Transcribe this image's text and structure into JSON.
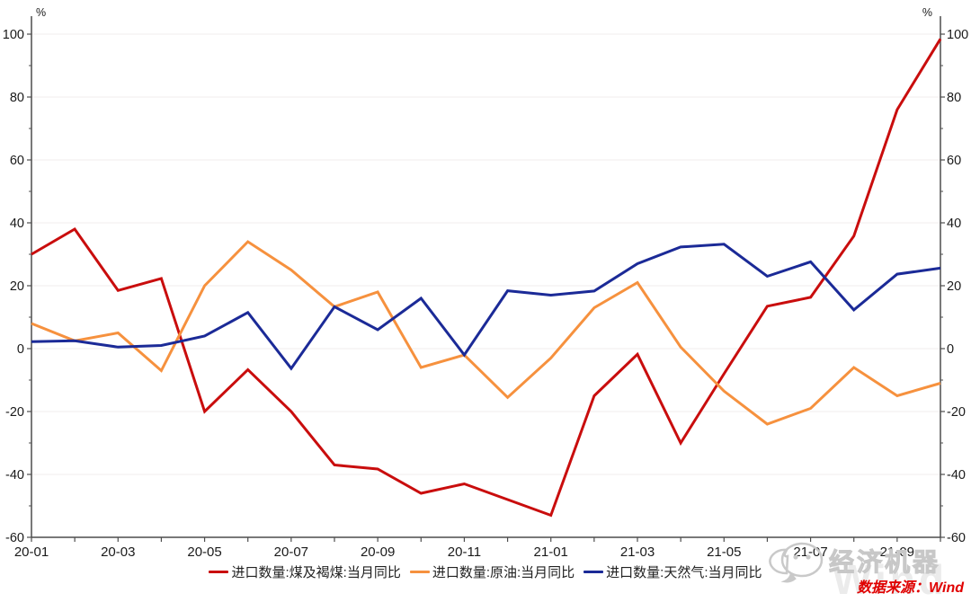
{
  "chart_data": {
    "type": "line",
    "title": "",
    "unit_label_left": "%",
    "unit_label_right": "%",
    "x": [
      "20-01",
      "20-02",
      "20-03",
      "20-04",
      "20-05",
      "20-06",
      "20-07",
      "20-08",
      "20-09",
      "20-10",
      "20-11",
      "20-12",
      "21-01",
      "21-02",
      "21-03",
      "21-04",
      "21-05",
      "21-06",
      "21-07",
      "21-08",
      "21-09",
      "21-10"
    ],
    "x_tick_labels": [
      "20-01",
      "20-03",
      "20-05",
      "20-07",
      "20-09",
      "20-11",
      "21-01",
      "21-03",
      "21-05",
      "21-07",
      "21-09"
    ],
    "ylim": [
      -60,
      100
    ],
    "ytick_step": 20,
    "ytick_minor_step": 10,
    "grid": "horizontal-faint",
    "legend_position": "bottom",
    "series": [
      {
        "name": "进口数量:煤及褐煤:当月同比",
        "color": "#c90d0d",
        "values": [
          30,
          38,
          18.5,
          22.3,
          -20,
          -6.7,
          -20,
          -37,
          -38.3,
          -46,
          -43,
          -48,
          -53,
          -15,
          -1.8,
          -30,
          -8,
          13.5,
          16.3,
          35.8,
          76,
          98.5
        ]
      },
      {
        "name": "进口数量:原油:当月同比",
        "color": "#f6913e",
        "values": [
          8,
          2.5,
          5,
          -7,
          20,
          34,
          25,
          13.3,
          18,
          -6,
          -2,
          -15.5,
          -3,
          13,
          21,
          0.5,
          -13.5,
          -24,
          -19,
          -6,
          -15,
          -11
        ]
      },
      {
        "name": "进口数量:天然气:当月同比",
        "color": "#1b2a97",
        "values": [
          2.2,
          2.5,
          0.5,
          1,
          4,
          11.5,
          -6.3,
          13.3,
          6,
          16,
          -2,
          18.4,
          17,
          18.3,
          27,
          32.3,
          33.2,
          23,
          27.6,
          12.3,
          23.7,
          25.6
        ]
      }
    ],
    "axis_color": "#4d4d4d",
    "grid_color": "#f2eeee",
    "label_color": "#1a1a1a"
  },
  "watermark": {
    "brand": "经济机器",
    "wind": "Wind"
  },
  "source_note": "数据来源：Wind"
}
